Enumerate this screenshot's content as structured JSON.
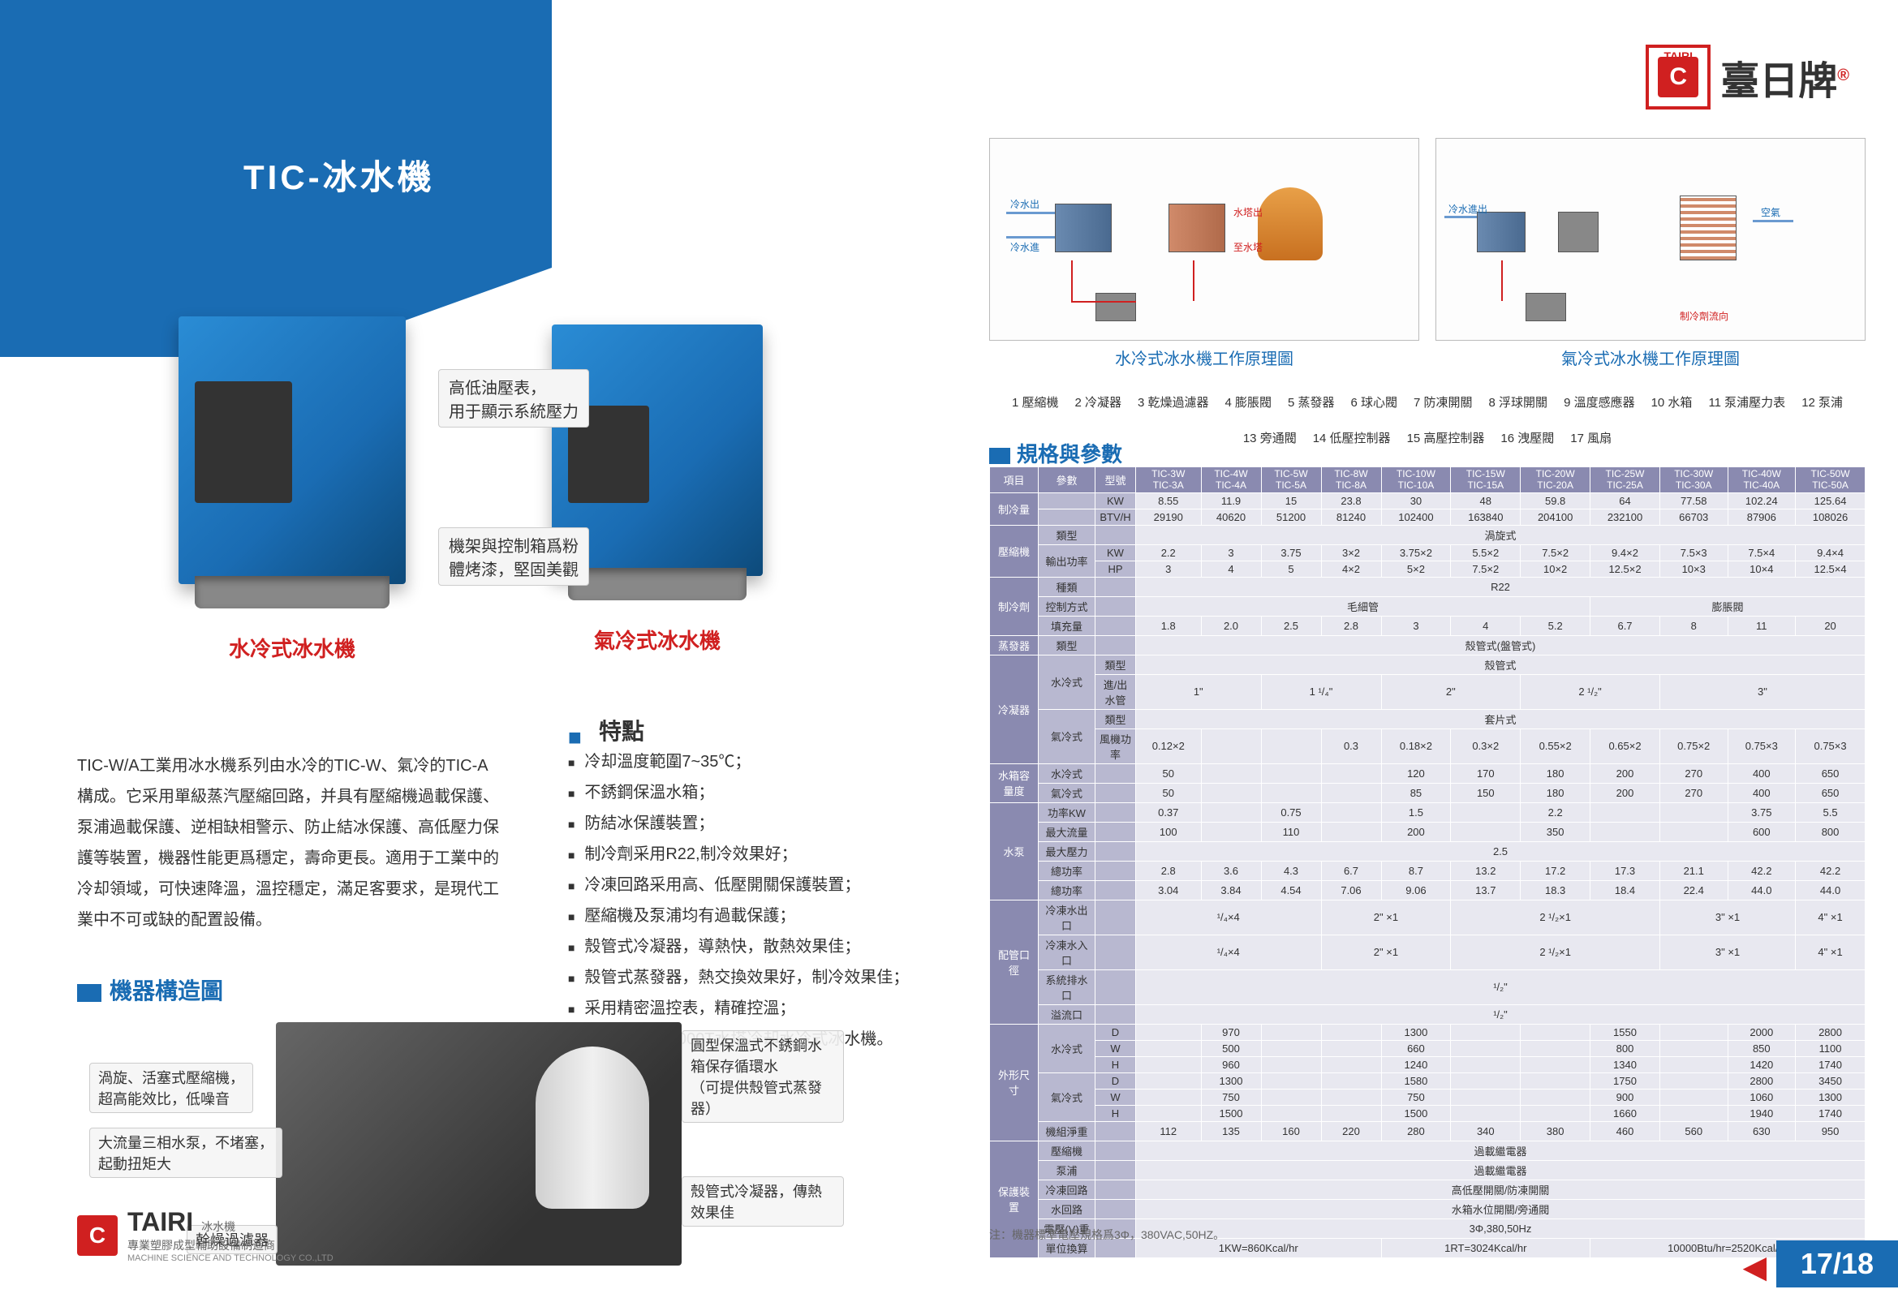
{
  "page": {
    "title": "TIC-冰水機",
    "product_water_label": "水冷式冰水機",
    "product_air_label": "氣冷式冰水機",
    "callout_gauge": "高低油壓表，\n用于顯示系統壓力",
    "callout_frame": "機架與控制箱爲粉\n體烤漆，堅固美觀",
    "description": "TIC-W/A工業用冰水機系列由水冷的TIC-W、氣冷的TIC-A構成。它采用單級蒸汽壓縮回路，并具有壓縮機過載保護、泵浦過載保護、逆相缺相警示、防止結冰保護、高低壓力保護等裝置，機器性能更爲穩定，壽命更長。適用于工業中的冷却領域，可快速降溫，溫控穩定，滿足客要求，是現代工業中不可或缺的配置設備。",
    "features_heading": "特點",
    "features": [
      "冷却溫度範圍7~35℃；",
      "不銹鋼保溫水箱；",
      "防結冰保護裝置；",
      "制冷劑采用R22,制冷效果好；",
      "冷凍回路采用高、低壓開關保護裝置；",
      "壓縮機及泵浦均有過載保護；",
      "殼管式冷凝器，導熱快，散熱效果佳；",
      "殼管式蒸發器，熱交換效果好，制冷效果佳；",
      "采用精密溫控表，精確控溫；",
      "可選配8T～1000T水塔冷却水冷式冰水機。"
    ],
    "diagram_heading": "機器構造圖",
    "diagram_callouts": {
      "tank": "圓型保溫式不銹鋼水箱保存循環水\n（可提供殼管式蒸發器）",
      "compressor": "渦旋、活塞式壓縮機，\n超高能效比，低噪音",
      "pump": "大流量三相水泵，不堵塞，\n起動扭矩大",
      "condenser": "殼管式冷凝器，傳熱效果佳",
      "filter": "幹燥過濾器"
    },
    "footer": {
      "brand": "TAIRI",
      "product": "冰水機",
      "tagline": "專業塑膠成型輔助設備制造商",
      "company": "MACHINE SCIENCE AND TECHNOLOGY CO.,LTD"
    }
  },
  "right": {
    "brand_top": "TAIRI",
    "brand_icon": "C",
    "brand_name": "臺日牌",
    "schematic_water_caption": "水冷式冰水機工作原理圖",
    "schematic_air_caption": "氣冷式冰水機工作原理圖",
    "legend": [
      "1 壓縮機",
      "2 冷凝器",
      "3 乾燥過濾器",
      "4 膨脹閥",
      "5 蒸發器",
      "6 球心閥",
      "7 防凍開關",
      "8 浮球開關",
      "9 溫度感應器",
      "10 水箱",
      "11 泵浦壓力表",
      "12 泵浦",
      "13 旁通閥",
      "14 低壓控制器",
      "15 高壓控制器",
      "16 洩壓閥",
      "17 風扇"
    ],
    "spec_heading": "規格與參數",
    "spec": {
      "header_item": "項目",
      "header_param": "參數",
      "header_model": "型號",
      "models": [
        "TIC-3W\nTIC-3A",
        "TIC-4W\nTIC-4A",
        "TIC-5W\nTIC-5A",
        "TIC-8W\nTIC-8A",
        "TIC-10W\nTIC-10A",
        "TIC-15W\nTIC-15A",
        "TIC-20W\nTIC-20A",
        "TIC-25W\nTIC-25A",
        "TIC-30W\nTIC-30A",
        "TIC-40W\nTIC-40A",
        "TIC-50W\nTIC-50A"
      ],
      "rows": [
        {
          "g": "制冷量",
          "s": "",
          "u": "KW",
          "v": [
            "8.55",
            "11.9",
            "15",
            "23.8",
            "30",
            "48",
            "59.8",
            "64",
            "77.58",
            "102.24",
            "125.64"
          ]
        },
        {
          "g": "",
          "s": "",
          "u": "BTV/H",
          "v": [
            "29190",
            "40620",
            "51200",
            "81240",
            "102400",
            "163840",
            "204100",
            "232100",
            "66703",
            "87906",
            "108026"
          ]
        },
        {
          "g": "壓縮機",
          "s": "類型",
          "u": "",
          "span": "渦旋式"
        },
        {
          "g": "",
          "s": "輸出功率",
          "u": "KW",
          "v": [
            "2.2",
            "3",
            "3.75",
            "3×2",
            "3.75×2",
            "5.5×2",
            "7.5×2",
            "9.4×2",
            "7.5×3",
            "7.5×4",
            "9.4×4"
          ]
        },
        {
          "g": "",
          "s": "",
          "u": "HP",
          "v": [
            "3",
            "4",
            "5",
            "4×2",
            "5×2",
            "7.5×2",
            "10×2",
            "12.5×2",
            "10×3",
            "10×4",
            "12.5×4"
          ]
        },
        {
          "g": "制冷劑",
          "s": "種類",
          "u": "",
          "span": "R22"
        },
        {
          "g": "",
          "s": "控制方式",
          "u": "",
          "spans": [
            {
              "t": "毛細管",
              "c": 7
            },
            {
              "t": "膨脹閥",
              "c": 4
            }
          ]
        },
        {
          "g": "",
          "s": "填充量",
          "u": "",
          "v": [
            "1.8",
            "2.0",
            "2.5",
            "2.8",
            "3",
            "4",
            "5.2",
            "6.7",
            "8",
            "11",
            "20"
          ]
        },
        {
          "g": "蒸發器",
          "s": "類型",
          "u": "",
          "span": "殼管式(盤管式)"
        },
        {
          "g": "冷凝器",
          "s": "水冷式",
          "u": "類型",
          "span": "殼管式"
        },
        {
          "g": "",
          "s": "",
          "u": "進/出水管",
          "spans": [
            {
              "t": "1\"",
              "c": 2
            },
            {
              "t": "1 ¹/₄\"",
              "c": 2
            },
            {
              "t": "2\"",
              "c": 2
            },
            {
              "t": "2 ¹/₂\"",
              "c": 2
            },
            {
              "t": "3\"",
              "c": 3
            }
          ]
        },
        {
          "g": "",
          "s": "氣冷式",
          "u": "類型",
          "span": "套片式"
        },
        {
          "g": "",
          "s": "",
          "u": "風機功率",
          "v": [
            "0.12×2",
            "",
            "",
            "0.3",
            "0.18×2",
            "0.3×2",
            "0.55×2",
            "0.65×2",
            "0.75×2",
            "0.75×3",
            "0.75×3"
          ]
        },
        {
          "g": "水箱容量度",
          "s": "水冷式",
          "u": "",
          "v": [
            "50",
            "",
            "",
            "",
            "120",
            "170",
            "180",
            "200",
            "270",
            "400",
            "650"
          ]
        },
        {
          "g": "",
          "s": "氣冷式",
          "u": "",
          "v": [
            "50",
            "",
            "",
            "",
            "85",
            "150",
            "180",
            "200",
            "270",
            "400",
            "650"
          ]
        },
        {
          "g": "水泵",
          "s": "功率KW",
          "u": "",
          "v": [
            "0.37",
            "",
            "0.75",
            "",
            "1.5",
            "",
            "2.2",
            "",
            "",
            "3.75",
            "5.5"
          ]
        },
        {
          "g": "",
          "s": "最大流量",
          "u": "",
          "v": [
            "100",
            "",
            "110",
            "",
            "200",
            "",
            "350",
            "",
            "",
            "600",
            "800"
          ]
        },
        {
          "g": "",
          "s": "最大壓力",
          "u": "",
          "span": "2.5"
        },
        {
          "g": "",
          "s": "總功率",
          "u": "",
          "v": [
            "2.8",
            "3.6",
            "4.3",
            "6.7",
            "8.7",
            "13.2",
            "17.2",
            "17.3",
            "21.1",
            "42.2",
            "42.2"
          ]
        },
        {
          "g": "",
          "s": "總功率",
          "u": "",
          "v": [
            "3.04",
            "3.84",
            "4.54",
            "7.06",
            "9.06",
            "13.7",
            "18.3",
            "18.4",
            "22.4",
            "44.0",
            "44.0"
          ]
        },
        {
          "g": "配管口徑",
          "s": "冷凍水出口",
          "u": "",
          "spans": [
            {
              "t": "¹/₄×4",
              "c": 3
            },
            {
              "t": "2\" ×1",
              "c": 2
            },
            {
              "t": "2 ¹/₂×1",
              "c": 3
            },
            {
              "t": "3\" ×1",
              "c": 2
            },
            {
              "t": "4\" ×1",
              "c": 1
            }
          ]
        },
        {
          "g": "",
          "s": "冷凍水入口",
          "u": "",
          "spans": [
            {
              "t": "¹/₄×4",
              "c": 3
            },
            {
              "t": "2\" ×1",
              "c": 2
            },
            {
              "t": "2 ¹/₂×1",
              "c": 3
            },
            {
              "t": "3\" ×1",
              "c": 2
            },
            {
              "t": "4\" ×1",
              "c": 1
            }
          ]
        },
        {
          "g": "",
          "s": "系統排水口",
          "u": "",
          "span": "¹/₂\""
        },
        {
          "g": "",
          "s": "溢流口",
          "u": "",
          "span": "¹/₂\""
        },
        {
          "g": "外形尺寸",
          "s": "水冷式",
          "u": "D",
          "v": [
            "",
            "970",
            "",
            "",
            "1300",
            "",
            "",
            "1550",
            "",
            "2000",
            "2800"
          ]
        },
        {
          "g": "",
          "s": "",
          "u": "W",
          "v": [
            "",
            "500",
            "",
            "",
            "660",
            "",
            "",
            "800",
            "",
            "850",
            "1100"
          ]
        },
        {
          "g": "",
          "s": "",
          "u": "H",
          "v": [
            "",
            "960",
            "",
            "",
            "1240",
            "",
            "",
            "1340",
            "",
            "1420",
            "1740"
          ]
        },
        {
          "g": "",
          "s": "氣冷式",
          "u": "D",
          "v": [
            "",
            "1300",
            "",
            "",
            "1580",
            "",
            "",
            "1750",
            "",
            "2800",
            "3450"
          ]
        },
        {
          "g": "",
          "s": "",
          "u": "W",
          "v": [
            "",
            "750",
            "",
            "",
            "750",
            "",
            "",
            "900",
            "",
            "1060",
            "1300"
          ]
        },
        {
          "g": "",
          "s": "",
          "u": "H",
          "v": [
            "",
            "1500",
            "",
            "",
            "1500",
            "",
            "",
            "1660",
            "",
            "1940",
            "1740"
          ]
        },
        {
          "g": "",
          "s": "機組淨重",
          "u": "",
          "v": [
            "112",
            "135",
            "160",
            "220",
            "280",
            "340",
            "380",
            "460",
            "560",
            "630",
            "950"
          ]
        },
        {
          "g": "保護裝置",
          "s": "壓縮機",
          "u": "",
          "span": "過載繼電器"
        },
        {
          "g": "",
          "s": "泵浦",
          "u": "",
          "span": "過載繼電器"
        },
        {
          "g": "",
          "s": "冷凍回路",
          "u": "",
          "span": "高低壓開關/防凍開關"
        },
        {
          "g": "",
          "s": "水回路",
          "u": "",
          "span": "水箱水位開關/旁通閥"
        },
        {
          "g": "",
          "s": "電壓(V)重",
          "u": "",
          "span": "3Φ,380,50Hz"
        },
        {
          "g": "",
          "s": "單位換算",
          "u": "",
          "spans": [
            {
              "t": "1KW=860Kcal/hr",
              "c": 4
            },
            {
              "t": "1RT=3024Kcal/hr",
              "c": 3
            },
            {
              "t": "10000Btu/hr=2520Kcal/hr",
              "c": 4
            }
          ]
        }
      ]
    },
    "note": "注：機器標準電壓規格爲3Φ，380VAC,50HZ。",
    "pagenum": "17/18"
  },
  "colors": {
    "primary_blue": "#1a6cb3",
    "accent_red": "#d02020",
    "table_h1": "#8a8ab0",
    "table_h2": "#b8b8d0",
    "table_d": "#e8e8f0"
  }
}
